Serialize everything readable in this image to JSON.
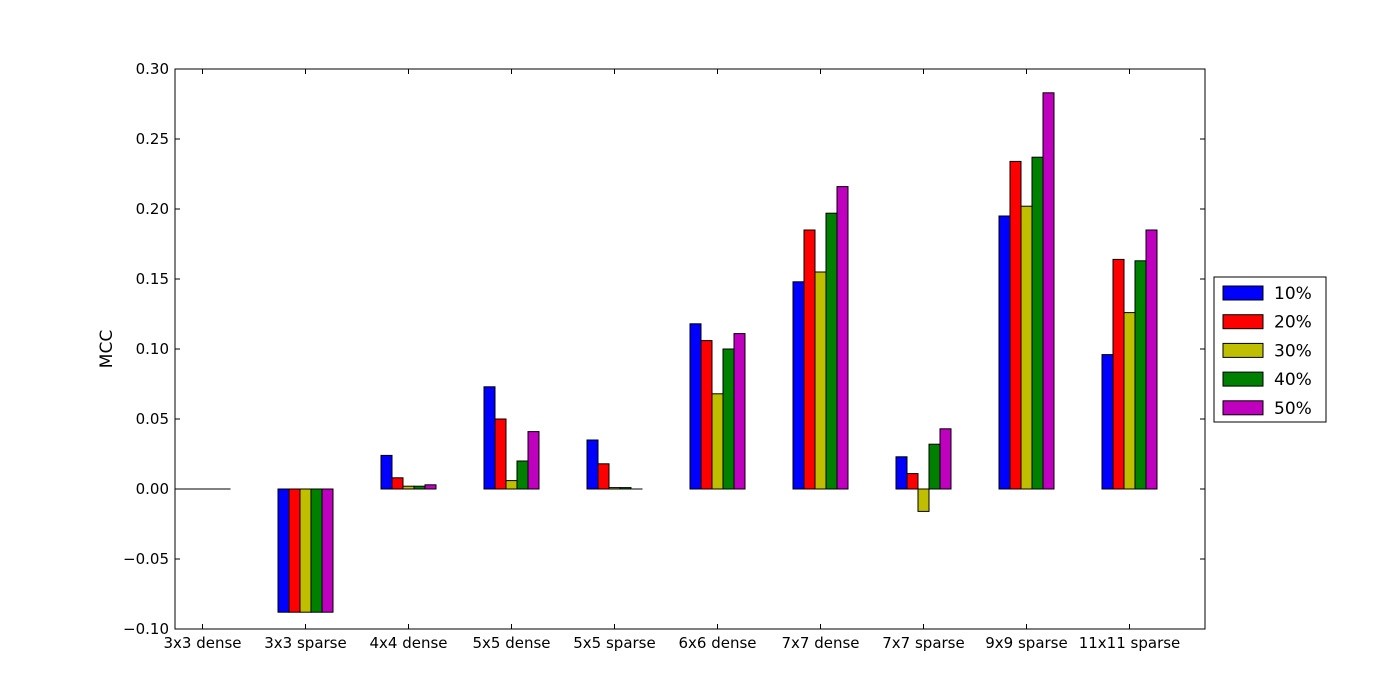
{
  "chart_data": {
    "type": "bar",
    "title": "",
    "xlabel": "",
    "ylabel": "MCC",
    "ylim": [
      -0.1,
      0.3
    ],
    "yticks": [
      -0.1,
      -0.05,
      0.0,
      0.05,
      0.1,
      0.15,
      0.2,
      0.25,
      0.3
    ],
    "ytick_labels": [
      "−0.10",
      "−0.05",
      "0.00",
      "0.05",
      "0.10",
      "0.15",
      "0.20",
      "0.25",
      "0.30"
    ],
    "grid": false,
    "legend_position": "right",
    "categories": [
      "3x3 dense",
      "3x3 sparse",
      "4x4 dense",
      "5x5 dense",
      "5x5 sparse",
      "6x6 dense",
      "7x7 dense",
      "7x7 sparse",
      "9x9 sparse",
      "11x11 sparse"
    ],
    "series": [
      {
        "name": "10%",
        "color": "#0000ff",
        "values": [
          0.0,
          -0.088,
          0.024,
          0.073,
          0.035,
          0.118,
          0.148,
          0.023,
          0.195,
          0.096
        ]
      },
      {
        "name": "20%",
        "color": "#ff0000",
        "values": [
          0.0,
          -0.088,
          0.008,
          0.05,
          0.018,
          0.106,
          0.185,
          0.011,
          0.234,
          0.164
        ]
      },
      {
        "name": "30%",
        "color": "#bfbf00",
        "values": [
          0.0,
          -0.088,
          0.002,
          0.006,
          0.001,
          0.068,
          0.155,
          -0.016,
          0.202,
          0.126
        ]
      },
      {
        "name": "40%",
        "color": "#008000",
        "values": [
          0.0,
          -0.088,
          0.002,
          0.02,
          0.001,
          0.1,
          0.197,
          0.032,
          0.237,
          0.163
        ]
      },
      {
        "name": "50%",
        "color": "#bf00bf",
        "values": [
          0.0,
          -0.088,
          0.003,
          0.041,
          0.0,
          0.111,
          0.216,
          0.043,
          0.283,
          0.185
        ]
      }
    ]
  }
}
